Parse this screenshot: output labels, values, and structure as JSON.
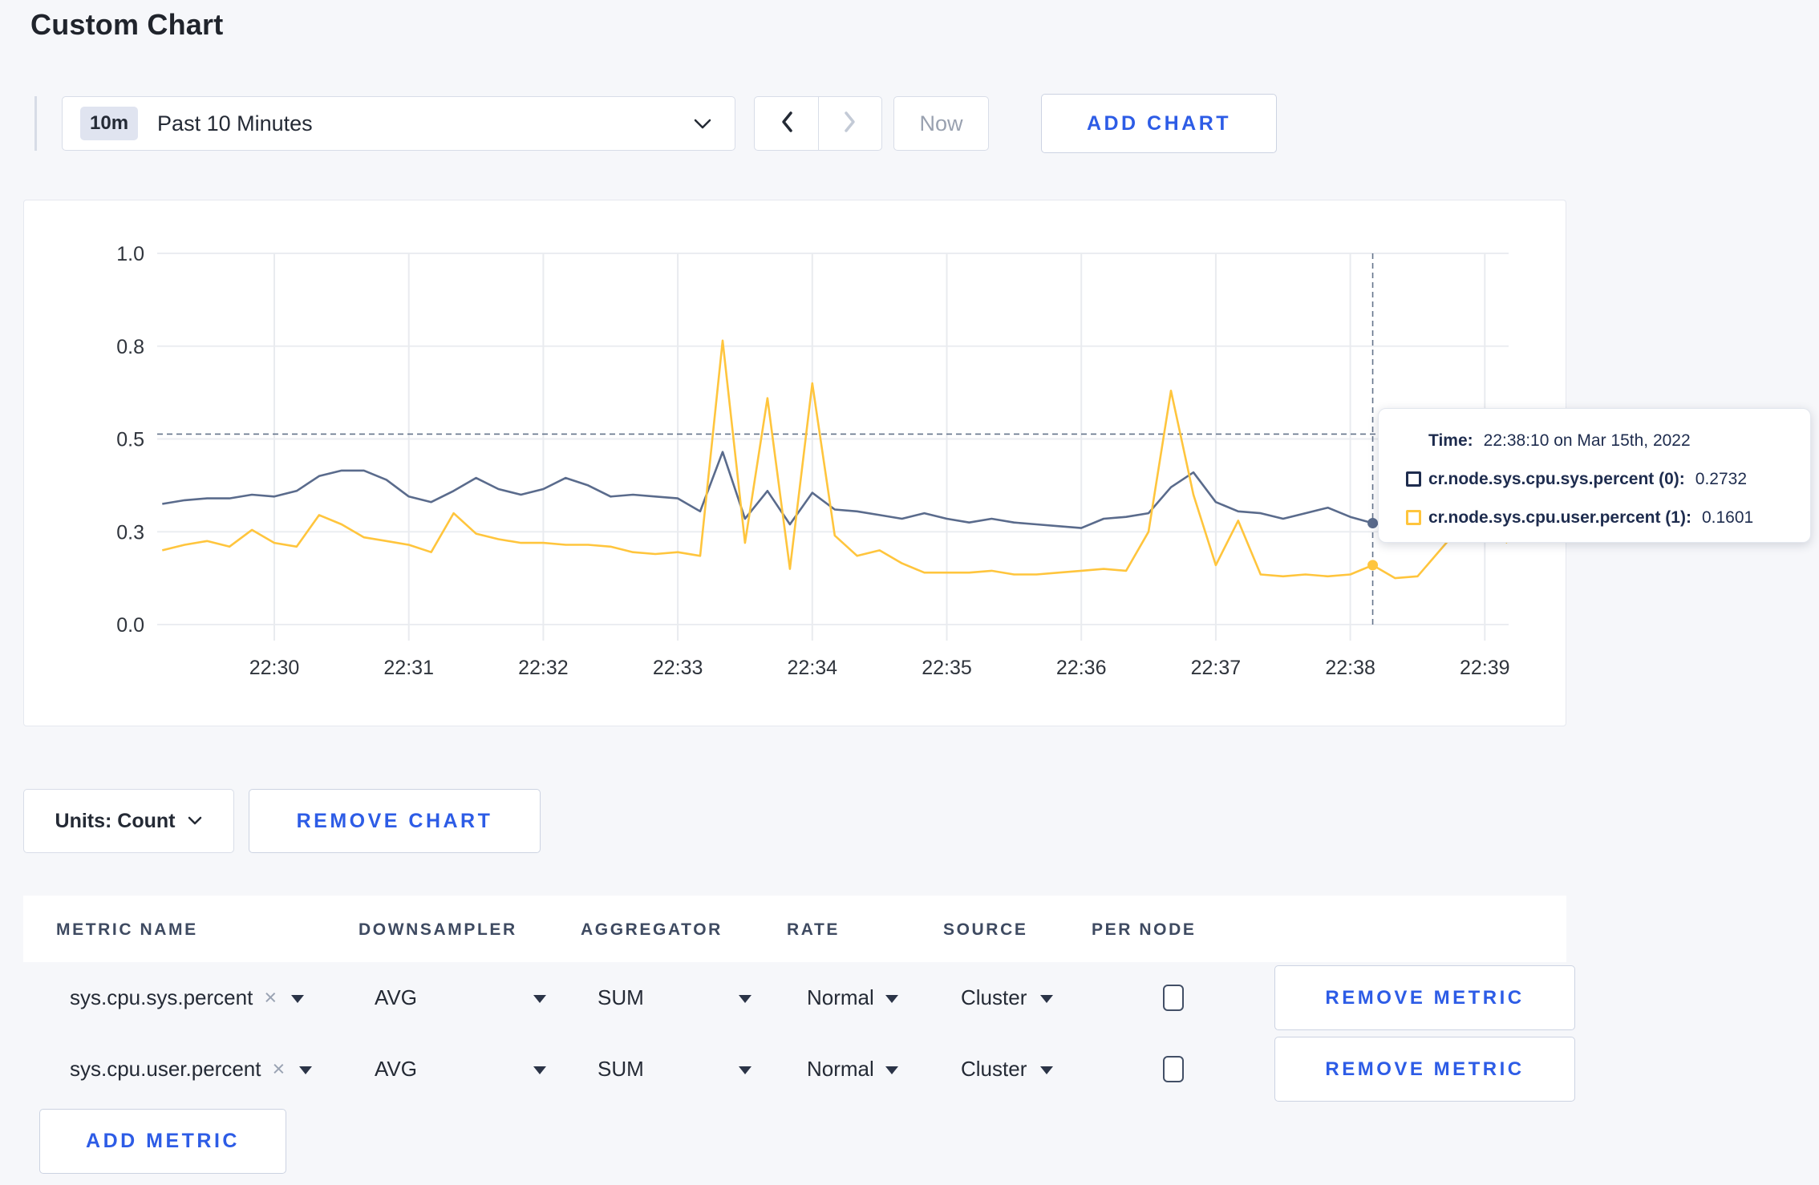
{
  "page": {
    "title": "Custom Chart"
  },
  "toolbar": {
    "range_badge": "10m",
    "range_label": "Past 10 Minutes",
    "now_label": "Now",
    "add_chart_label": "ADD CHART"
  },
  "chart_data": {
    "type": "line",
    "title": "",
    "xlabel": "",
    "ylabel": "",
    "ylim": [
      0,
      1
    ],
    "grid": true,
    "legend_position": "tooltip",
    "x_start_time": "22:29:10",
    "x_end_time": "22:39:10",
    "interval_seconds": 10,
    "x_tick_labels": [
      "22:30",
      "22:31",
      "22:32",
      "22:33",
      "22:34",
      "22:35",
      "22:36",
      "22:37",
      "22:38",
      "22:39"
    ],
    "y_tick_labels": [
      "0.0",
      "0.3",
      "0.5",
      "0.8",
      "1.0"
    ],
    "y_tick_values": [
      0,
      0.25,
      0.5,
      0.75,
      1.0
    ],
    "series": [
      {
        "name": "cr.node.sys.cpu.sys.percent",
        "color": "#5a6b8c",
        "values": [
          0.325,
          0.335,
          0.34,
          0.34,
          0.35,
          0.345,
          0.36,
          0.4,
          0.415,
          0.415,
          0.39,
          0.345,
          0.33,
          0.36,
          0.395,
          0.365,
          0.35,
          0.365,
          0.395,
          0.375,
          0.345,
          0.35,
          0.345,
          0.34,
          0.305,
          0.465,
          0.285,
          0.36,
          0.27,
          0.355,
          0.31,
          0.305,
          0.295,
          0.285,
          0.3,
          0.285,
          0.275,
          0.285,
          0.275,
          0.27,
          0.265,
          0.26,
          0.285,
          0.29,
          0.3,
          0.37,
          0.41,
          0.33,
          0.305,
          0.3,
          0.285,
          0.3,
          0.315,
          0.29,
          0.2732,
          0.265,
          0.285,
          0.3,
          0.29,
          0.295,
          0.305
        ]
      },
      {
        "name": "cr.node.sys.cpu.user.percent",
        "color": "#ffc53d",
        "values": [
          0.2,
          0.215,
          0.225,
          0.21,
          0.255,
          0.22,
          0.21,
          0.295,
          0.27,
          0.235,
          0.225,
          0.215,
          0.195,
          0.3,
          0.245,
          0.23,
          0.22,
          0.22,
          0.215,
          0.215,
          0.21,
          0.195,
          0.19,
          0.195,
          0.185,
          0.765,
          0.22,
          0.61,
          0.15,
          0.65,
          0.24,
          0.185,
          0.2,
          0.165,
          0.14,
          0.14,
          0.14,
          0.145,
          0.135,
          0.135,
          0.14,
          0.145,
          0.15,
          0.145,
          0.25,
          0.63,
          0.35,
          0.16,
          0.28,
          0.135,
          0.13,
          0.135,
          0.13,
          0.135,
          0.1601,
          0.125,
          0.13,
          0.2,
          0.27,
          0.27,
          0.22
        ]
      }
    ],
    "crosshair": {
      "time": "22:38:10",
      "point_index": 54,
      "y_value": 0.513
    }
  },
  "tooltip": {
    "time_label": "Time:",
    "time_value": "22:38:10 on Mar 15th, 2022",
    "series": [
      {
        "label": "cr.node.sys.cpu.sys.percent (0):",
        "value": "0.2732",
        "color": "#1e2c4e"
      },
      {
        "label": "cr.node.sys.cpu.user.percent (1):",
        "value": "0.1601",
        "color": "#ffc53d"
      }
    ]
  },
  "chart_footer": {
    "units_label": "Units: Count",
    "remove_chart_label": "REMOVE CHART"
  },
  "metrics_table": {
    "headers": [
      "METRIC NAME",
      "DOWNSAMPLER",
      "AGGREGATOR",
      "RATE",
      "SOURCE",
      "PER NODE"
    ],
    "rows": [
      {
        "metric": "sys.cpu.sys.percent",
        "remove_glyph": "×",
        "downsampler": "AVG",
        "aggregator": "SUM",
        "rate": "Normal",
        "source": "Cluster",
        "per_node_checked": false,
        "remove_label": "REMOVE METRIC"
      },
      {
        "metric": "sys.cpu.user.percent",
        "remove_glyph": "×",
        "downsampler": "AVG",
        "aggregator": "SUM",
        "rate": "Normal",
        "source": "Cluster",
        "per_node_checked": false,
        "remove_label": "REMOVE METRIC"
      }
    ],
    "add_metric_label": "ADD METRIC"
  }
}
